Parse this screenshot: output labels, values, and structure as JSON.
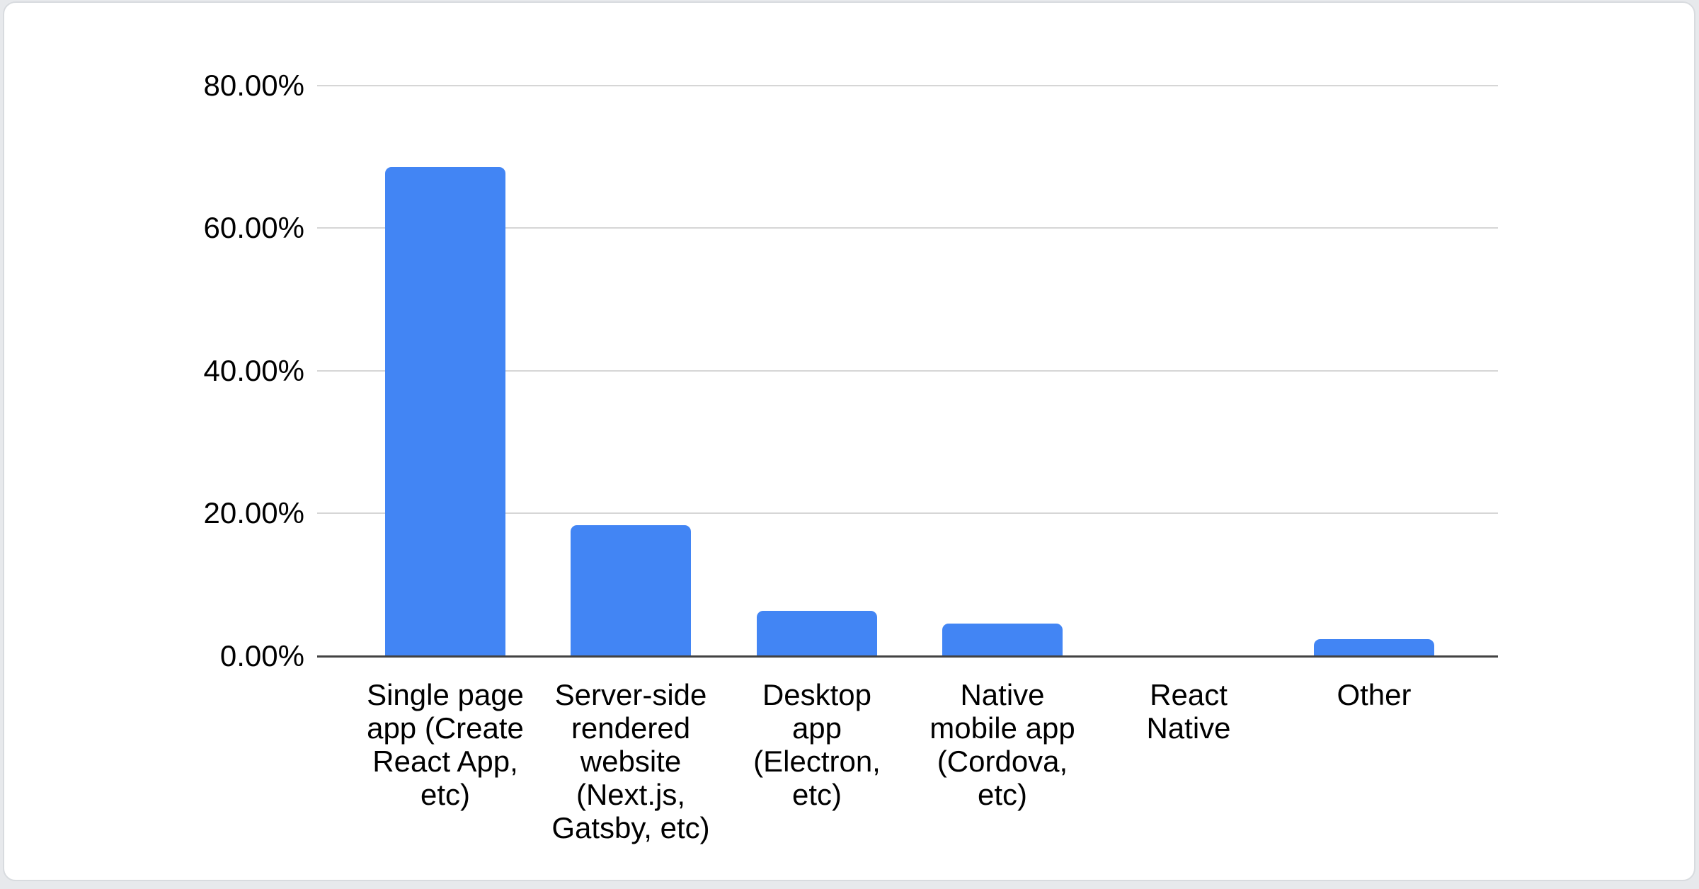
{
  "page": {
    "background_color": "#e7e9ec",
    "card_background": "#ffffff",
    "card_border_color": "#d8dbdf"
  },
  "chart_data": {
    "type": "bar",
    "title": "",
    "categories": [
      "Single page app (Create React App, etc)",
      "Server-side rendered website (Next.js, Gatsby, etc)",
      "Desktop app (Electron, etc)",
      "Native mobile app (Cordova, etc)",
      "React Native",
      "Other"
    ],
    "category_lines": [
      [
        "Single page",
        "app (Create",
        "React App,",
        "etc)"
      ],
      [
        "Server-side",
        "rendered",
        "website",
        "(Next.js,",
        "Gatsby, etc)"
      ],
      [
        "Desktop",
        "app",
        "(Electron,",
        "etc)"
      ],
      [
        "Native",
        "mobile app",
        "(Cordova,",
        "etc)"
      ],
      [
        "React",
        "Native"
      ],
      [
        "Other"
      ]
    ],
    "values": [
      68.5,
      18.4,
      6.3,
      4.6,
      0,
      2.4
    ],
    "value_unit": "%",
    "xlabel": "",
    "ylabel": "",
    "ylim": [
      0,
      80
    ],
    "yticks": {
      "values": [
        0,
        20,
        40,
        60,
        80
      ],
      "labels": [
        "0.00%",
        "20.00%",
        "40.00%",
        "60.00%",
        "80.00%"
      ]
    },
    "grid": "horizontal",
    "legend": "none",
    "bar_color": "#4285f4",
    "grid_color": "#d6d6d6",
    "axis_line_color": "#424242",
    "text_color": "#000000"
  }
}
